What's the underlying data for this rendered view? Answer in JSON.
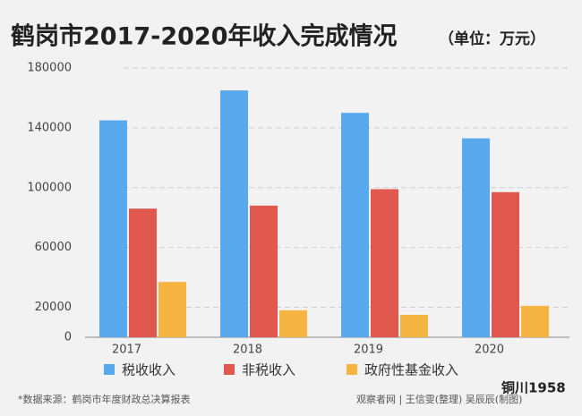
{
  "chart_data": {
    "type": "bar",
    "title": "鹤岗市2017-2020年收入完成情况",
    "subtitle": "（单位：万元）",
    "categories": [
      "2017",
      "2018",
      "2019",
      "2020"
    ],
    "series": [
      {
        "name": "税收收入",
        "color": "#59a9ef",
        "values": [
          145000,
          165000,
          150000,
          133000
        ]
      },
      {
        "name": "非税收入",
        "color": "#e0584e",
        "values": [
          86000,
          88000,
          99000,
          97000
        ]
      },
      {
        "name": "政府性基金收入",
        "color": "#f6b443",
        "values": [
          37000,
          18000,
          15000,
          21000
        ]
      }
    ],
    "ylim": [
      0,
      180000
    ],
    "yticks": [
      0,
      20000,
      60000,
      100000,
      140000,
      180000
    ],
    "grid": true,
    "source": "*数据来源：鹤岗市年度财政总决算报表",
    "credit": "观察者网 | 王信雯(整理) 吴辰辰(制图)",
    "watermark": "铜川1958"
  }
}
